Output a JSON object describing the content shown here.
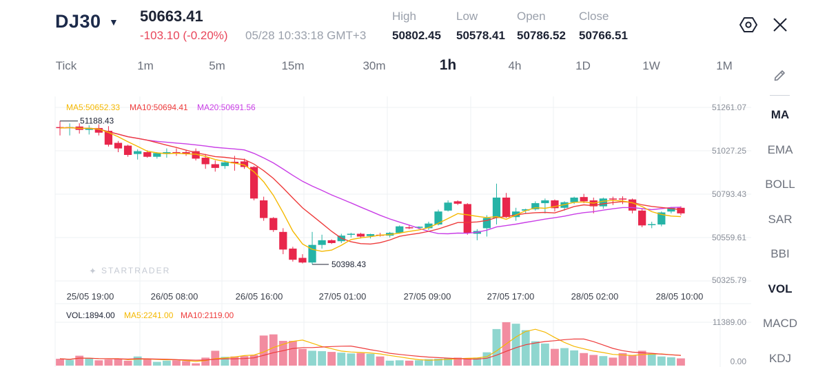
{
  "header": {
    "symbol": "DJ30",
    "last_price": "50663.41",
    "change": "-103.10 (-0.20%)",
    "timestamp": "05/28 10:33:18 GMT+3",
    "stats": [
      {
        "label": "High",
        "value": "50802.45"
      },
      {
        "label": "Low",
        "value": "50578.41"
      },
      {
        "label": "Open",
        "value": "50786.52"
      },
      {
        "label": "Close",
        "value": "50766.51"
      }
    ],
    "icons": {
      "settings": "hexagon-settings-icon",
      "close": "close-x-icon",
      "draw": "pencil-draw-icon"
    }
  },
  "timeframes": [
    "Tick",
    "1m",
    "5m",
    "15m",
    "30m",
    "1h",
    "4h",
    "1D",
    "1W",
    "1M"
  ],
  "active_timeframe": "1h",
  "indicators": [
    "MA",
    "EMA",
    "BOLL",
    "SAR",
    "BBI",
    "VOL",
    "MACD",
    "KDJ"
  ],
  "active_indicators": [
    "MA",
    "VOL"
  ],
  "colors": {
    "up": "#26b3a6",
    "down": "#e8264b",
    "ma5": "#f5b800",
    "ma10": "#ee3b3b",
    "ma20": "#c93ee6",
    "vol_up": "#8fd6cf",
    "vol_down": "#f28ca0"
  },
  "chart_data": [
    {
      "type": "candlestick",
      "legend": {
        "ma5": "MA5:50652.33",
        "ma10": "MA10:50694.41",
        "ma20": "MA20:50691.56"
      },
      "y_ticks": [
        "51261.07",
        "51027.25",
        "50793.43",
        "50559.61",
        "50325.79"
      ],
      "ylim": [
        50325.79,
        51261.07
      ],
      "x_ticks": [
        "25/05 19:00",
        "26/05 08:00",
        "26/05 16:00",
        "27/05 01:00",
        "27/05 09:00",
        "27/05 17:00",
        "28/05 02:00",
        "28/05 10:00"
      ],
      "annotations": {
        "max": "51188.43",
        "min": "50398.43"
      },
      "watermark": "STARTRADER",
      "candles": [
        {
          "o": 51155,
          "h": 51188,
          "l": 51110,
          "c": 51150
        },
        {
          "o": 51150,
          "h": 51175,
          "l": 51110,
          "c": 51155
        },
        {
          "o": 51158,
          "h": 51176,
          "l": 51120,
          "c": 51140
        },
        {
          "o": 51140,
          "h": 51165,
          "l": 51115,
          "c": 51150
        },
        {
          "o": 51150,
          "h": 51170,
          "l": 51110,
          "c": 51125
        },
        {
          "o": 51135,
          "h": 51160,
          "l": 51050,
          "c": 51060
        },
        {
          "o": 51070,
          "h": 51080,
          "l": 51020,
          "c": 51040
        },
        {
          "o": 51055,
          "h": 51060,
          "l": 50995,
          "c": 51005
        },
        {
          "o": 51010,
          "h": 51035,
          "l": 50980,
          "c": 51025
        },
        {
          "o": 51020,
          "h": 51030,
          "l": 50990,
          "c": 50995
        },
        {
          "o": 50995,
          "h": 51020,
          "l": 50985,
          "c": 51015
        },
        {
          "o": 51010,
          "h": 51040,
          "l": 50990,
          "c": 51020
        },
        {
          "o": 51020,
          "h": 51040,
          "l": 51000,
          "c": 51015
        },
        {
          "o": 51020,
          "h": 51030,
          "l": 51000,
          "c": 51010
        },
        {
          "o": 51025,
          "h": 51040,
          "l": 50975,
          "c": 50985
        },
        {
          "o": 50990,
          "h": 51010,
          "l": 50930,
          "c": 50955
        },
        {
          "o": 50955,
          "h": 50975,
          "l": 50915,
          "c": 50935
        },
        {
          "o": 50945,
          "h": 50975,
          "l": 50930,
          "c": 50965
        },
        {
          "o": 50968,
          "h": 51000,
          "l": 50920,
          "c": 50960
        },
        {
          "o": 50970,
          "h": 50985,
          "l": 50930,
          "c": 50940
        },
        {
          "o": 50940,
          "h": 50945,
          "l": 50760,
          "c": 50770
        },
        {
          "o": 50760,
          "h": 50780,
          "l": 50650,
          "c": 50665
        },
        {
          "o": 50665,
          "h": 50670,
          "l": 50590,
          "c": 50600
        },
        {
          "o": 50590,
          "h": 50610,
          "l": 50470,
          "c": 50495
        },
        {
          "o": 50500,
          "h": 50510,
          "l": 50430,
          "c": 50440
        },
        {
          "o": 50450,
          "h": 50470,
          "l": 50420,
          "c": 50425
        },
        {
          "o": 50425,
          "h": 50590,
          "l": 50415,
          "c": 50520
        },
        {
          "o": 50520,
          "h": 50575,
          "l": 50500,
          "c": 50545
        },
        {
          "o": 50545,
          "h": 50550,
          "l": 50525,
          "c": 50530
        },
        {
          "o": 50540,
          "h": 50580,
          "l": 50530,
          "c": 50570
        },
        {
          "o": 50575,
          "h": 50585,
          "l": 50560,
          "c": 50580
        },
        {
          "o": 50580,
          "h": 50585,
          "l": 50555,
          "c": 50565
        },
        {
          "o": 50568,
          "h": 50580,
          "l": 50555,
          "c": 50578
        },
        {
          "o": 50575,
          "h": 50585,
          "l": 50565,
          "c": 50570
        },
        {
          "o": 50570,
          "h": 50590,
          "l": 50560,
          "c": 50585
        },
        {
          "o": 50585,
          "h": 50625,
          "l": 50580,
          "c": 50620
        },
        {
          "o": 50615,
          "h": 50625,
          "l": 50605,
          "c": 50610
        },
        {
          "o": 50612,
          "h": 50620,
          "l": 50605,
          "c": 50618
        },
        {
          "o": 50610,
          "h": 50645,
          "l": 50600,
          "c": 50635
        },
        {
          "o": 50630,
          "h": 50710,
          "l": 50625,
          "c": 50700
        },
        {
          "o": 50705,
          "h": 50760,
          "l": 50700,
          "c": 50748
        },
        {
          "o": 50755,
          "h": 50760,
          "l": 50735,
          "c": 50742
        },
        {
          "o": 50740,
          "h": 50745,
          "l": 50575,
          "c": 50585
        },
        {
          "o": 50580,
          "h": 50605,
          "l": 50545,
          "c": 50595
        },
        {
          "o": 50610,
          "h": 50680,
          "l": 50565,
          "c": 50665
        },
        {
          "o": 50665,
          "h": 50850,
          "l": 50630,
          "c": 50775
        },
        {
          "o": 50775,
          "h": 50800,
          "l": 50665,
          "c": 50670
        },
        {
          "o": 50670,
          "h": 50720,
          "l": 50650,
          "c": 50700
        },
        {
          "o": 50705,
          "h": 50715,
          "l": 50690,
          "c": 50712
        },
        {
          "o": 50712,
          "h": 50755,
          "l": 50705,
          "c": 50745
        },
        {
          "o": 50745,
          "h": 50770,
          "l": 50690,
          "c": 50760
        },
        {
          "o": 50760,
          "h": 50765,
          "l": 50700,
          "c": 50718
        },
        {
          "o": 50720,
          "h": 50755,
          "l": 50705,
          "c": 50750
        },
        {
          "o": 50750,
          "h": 50780,
          "l": 50740,
          "c": 50775
        },
        {
          "o": 50778,
          "h": 50795,
          "l": 50745,
          "c": 50755
        },
        {
          "o": 50760,
          "h": 50775,
          "l": 50690,
          "c": 50728
        },
        {
          "o": 50728,
          "h": 50775,
          "l": 50715,
          "c": 50770
        },
        {
          "o": 50770,
          "h": 50780,
          "l": 50735,
          "c": 50768
        },
        {
          "o": 50770,
          "h": 50782,
          "l": 50740,
          "c": 50765
        },
        {
          "o": 50765,
          "h": 50770,
          "l": 50690,
          "c": 50705
        },
        {
          "o": 50705,
          "h": 50715,
          "l": 50615,
          "c": 50625
        },
        {
          "o": 50628,
          "h": 50645,
          "l": 50610,
          "c": 50632
        },
        {
          "o": 50630,
          "h": 50700,
          "l": 50620,
          "c": 50695
        },
        {
          "o": 50700,
          "h": 50725,
          "l": 50690,
          "c": 50720
        },
        {
          "o": 50720,
          "h": 50728,
          "l": 50680,
          "c": 50690
        }
      ]
    },
    {
      "type": "bar",
      "legend": {
        "vol": "VOL:1894.00",
        "ma5": "MA5:2241.00",
        "ma10": "MA10:2119.00"
      },
      "y_ticks": [
        "11389.00",
        "0.00"
      ],
      "ylim": [
        0,
        11389
      ],
      "volumes": [
        1800,
        1500,
        2600,
        1900,
        1400,
        1600,
        1700,
        1300,
        2400,
        1700,
        1000,
        1300,
        1400,
        1200,
        600,
        2100,
        3900,
        2300,
        2400,
        2500,
        2800,
        7900,
        8200,
        6500,
        6500,
        4400,
        3900,
        3800,
        3600,
        3400,
        3200,
        3300,
        3100,
        2400,
        1300,
        1400,
        1300,
        1400,
        1700,
        1800,
        2000,
        2100,
        2000,
        2100,
        3500,
        9600,
        11400,
        11000,
        9300,
        6400,
        5800,
        4400,
        4600,
        4000,
        3300,
        2800,
        2500,
        2100,
        3300,
        2700,
        3900,
        3100,
        2400,
        2200,
        1900
      ]
    }
  ]
}
